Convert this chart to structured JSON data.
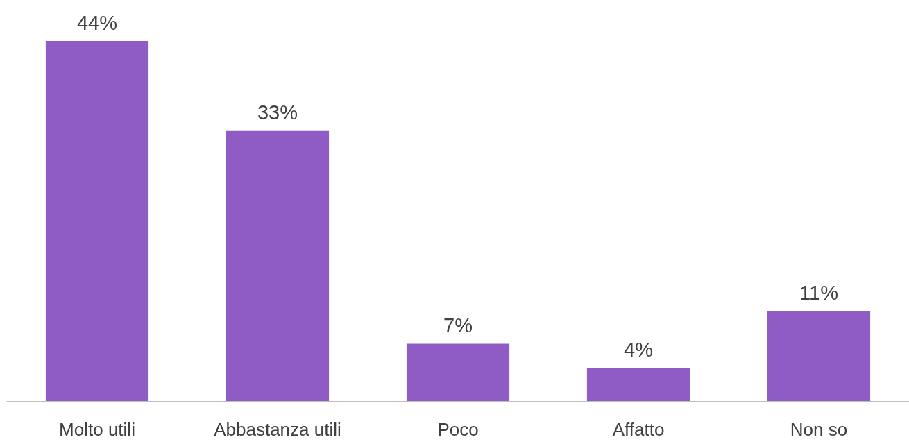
{
  "chart_data": {
    "type": "bar",
    "categories": [
      "Molto utili",
      "Abbastanza utili",
      "Poco",
      "Affatto",
      "Non so"
    ],
    "values": [
      44,
      33,
      7,
      4,
      11
    ],
    "value_labels": [
      "44%",
      "33%",
      "7%",
      "4%",
      "11%"
    ],
    "color": "#8e5cc4"
  }
}
